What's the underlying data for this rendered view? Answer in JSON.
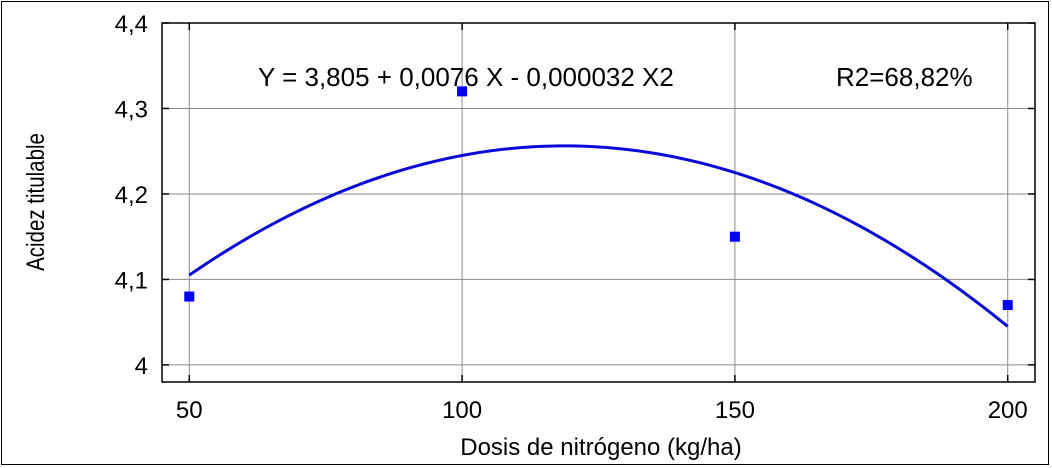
{
  "chart_data": {
    "type": "scatter",
    "xlabel": "Dosis de nitrógeno (kg/ha)",
    "ylabel": "Acidez titulable",
    "xlim": [
      45,
      205
    ],
    "ylim": [
      3.98,
      4.4
    ],
    "x_ticks": [
      "50",
      "100",
      "150",
      "200"
    ],
    "y_ticks": [
      "4",
      "4,1",
      "4,2",
      "4,3",
      "4,4"
    ],
    "grid": true,
    "points": [
      {
        "x": 50,
        "y": 4.08
      },
      {
        "x": 100,
        "y": 4.32
      },
      {
        "x": 150,
        "y": 4.15
      },
      {
        "x": 200,
        "y": 4.07
      }
    ],
    "fit": {
      "equation": "Y = 3,805 + 0,0076 X - 0,000032 X2",
      "r2": "R2=68,82%",
      "coefficients": [
        3.805,
        0.0076,
        -3.2e-05
      ],
      "x_range": [
        50,
        200
      ]
    },
    "colors": {
      "points": "#0000ff",
      "fit_line": "#0a0ad8",
      "grid": "#8a8a8a"
    }
  }
}
